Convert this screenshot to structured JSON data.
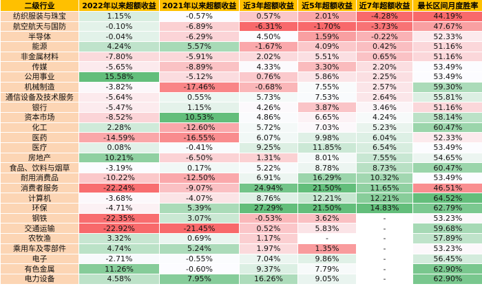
{
  "table": {
    "headers": [
      "二级行业",
      "2022年以来超额收益",
      "2021年以来超额收益",
      "近3年超额收益",
      "近5年超额收益",
      "近7年超额收益",
      "最长区间月度胜率"
    ],
    "rows": [
      [
        "纺织服装与珠宝",
        "1.15%",
        "-0.57%",
        "0.57%",
        "2.01%",
        "-4.28%",
        "44.19%"
      ],
      [
        "航空航天与国防",
        "-0.10%",
        "-6.89%",
        "-6.31%",
        "-1.70%",
        "-3.73%",
        "47.67%"
      ],
      [
        "半导体",
        "-0.04%",
        "-6.29%",
        "4.50%",
        "1.59%",
        "-0.22%",
        "52.33%"
      ],
      [
        "能源",
        "4.24%",
        "5.57%",
        "-1.67%",
        "4.09%",
        "0.42%",
        "51.16%"
      ],
      [
        "非金属材料",
        "-7.80%",
        "-5.91%",
        "2.02%",
        "5.51%",
        "0.65%",
        "51.16%"
      ],
      [
        "传媒",
        "-5.65%",
        "-8.89%",
        "4.33%",
        "3.30%",
        "2.20%",
        "53.49%"
      ],
      [
        "公用事业",
        "15.58%",
        "-5.12%",
        "0.76%",
        "5.86%",
        "2.25%",
        "53.49%"
      ],
      [
        "机械制造",
        "-3.82%",
        "-17.46%",
        "-0.68%",
        "7.55%",
        "2.57%",
        "59.30%"
      ],
      [
        "通信设备及技术服务",
        "-5.64%",
        "0.55%",
        "5.73%",
        "7.53%",
        "2.64%",
        "55.81%"
      ],
      [
        "银行",
        "-5.47%",
        "1.15%",
        "4.26%",
        "3.87%",
        "3.46%",
        "51.16%"
      ],
      [
        "资本市场",
        "-8.52%",
        "10.53%",
        "4.86%",
        "6.65%",
        "4.24%",
        "58.14%"
      ],
      [
        "化工",
        "2.28%",
        "-12.60%",
        "5.72%",
        "7.03%",
        "5.23%",
        "60.47%"
      ],
      [
        "医药",
        "-14.59%",
        "-16.55%",
        "6.07%",
        "9.98%",
        "6.04%",
        "52.33%"
      ],
      [
        "医疗",
        "0.08%",
        "-0.41%",
        "9.25%",
        "11.85%",
        "6.54%",
        "53.49%"
      ],
      [
        "房地产",
        "10.21%",
        "-6.50%",
        "1.31%",
        "8.01%",
        "7.55%",
        "54.65%"
      ],
      [
        "食品、饮料与烟草",
        "-3.19%",
        "0.17%",
        "5.22%",
        "8.78%",
        "8.73%",
        "60.47%"
      ],
      [
        "耐用消费品",
        "-10.22%",
        "-12.50%",
        "6.91%",
        "16.29%",
        "10.32%",
        "53.49%"
      ],
      [
        "消费者服务",
        "-22.24%",
        "-9.07%",
        "24.94%",
        "21.50%",
        "11.65%",
        "46.51%"
      ],
      [
        "计算机",
        "-3.68%",
        "-4.07%",
        "8.76%",
        "12.21%",
        "12.21%",
        "64.52%"
      ],
      [
        "环保",
        "-4.71%",
        "5.39%",
        "27.29%",
        "21.50%",
        "14.83%",
        "62.79%"
      ],
      [
        "钢铁",
        "-22.35%",
        "3.07%",
        "-0.53%",
        "3.62%",
        "-",
        "53.23%"
      ],
      [
        "交通运输",
        "-22.92%",
        "-21.45%",
        "0.52%",
        "5.83%",
        "-",
        "59.68%"
      ],
      [
        "农牧渔",
        "3.32%",
        "0.69%",
        "1.17%",
        "-",
        "-",
        "57.89%"
      ],
      [
        "乘用车及零部件",
        "4.74%",
        "5.24%",
        "1.97%",
        "1.35%",
        "-",
        "53.23%"
      ],
      [
        "电子",
        "-2.71%",
        "-0.55%",
        "7.04%",
        "9.86%",
        "-",
        "56.45%"
      ],
      [
        "有色金属",
        "11.26%",
        "-0.60%",
        "9.37%",
        "7.79%",
        "-",
        "62.90%"
      ],
      [
        "电力设备",
        "4.58%",
        "7.95%",
        "16.26%",
        "9.05%",
        "-",
        "62.90%"
      ]
    ]
  },
  "colors": {
    "header": "#FFC000",
    "name_column": "#FCD5B4",
    "scale_low": "#F8696B",
    "scale_mid": "#FCFCFF",
    "scale_high": "#63BE7B"
  }
}
